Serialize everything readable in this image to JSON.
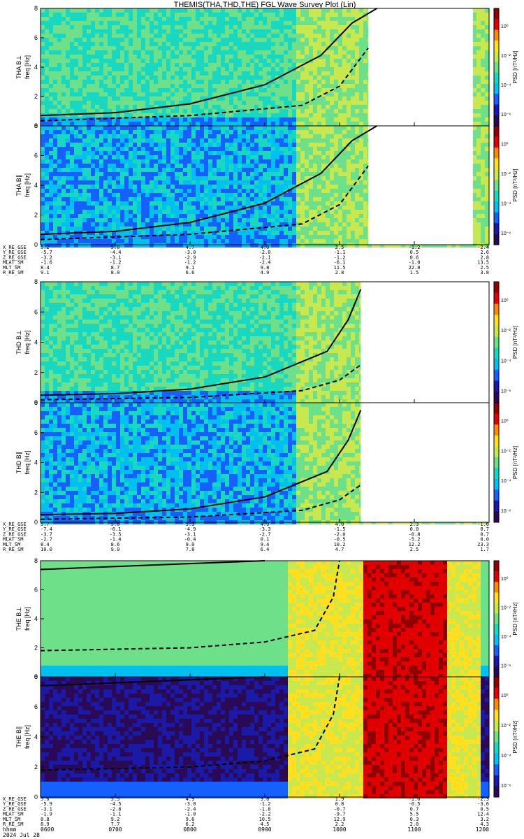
{
  "title": "THEMIS(THA,THD,THE) FGL Wave Survey Plot (Lin)",
  "colors": {
    "cmap": [
      "#2a0a55",
      "#1a1aa6",
      "#1560ff",
      "#00c0f0",
      "#19d8c0",
      "#6ee08a",
      "#c8e850",
      "#ffe020",
      "#ff8a00",
      "#e00000",
      "#900000"
    ],
    "line": "#000000"
  },
  "colorbar": {
    "label": "PSD [nT²/Hz]",
    "ticks": [
      "10⁰",
      "10⁻²",
      "10⁻⁴",
      "10⁻⁶"
    ]
  },
  "time_axis": {
    "unit_label": "hhmm",
    "date": "2024 Jul 28",
    "ticks": [
      "0600",
      "0700",
      "0800",
      "0900",
      "1000",
      "1100",
      "1200"
    ]
  },
  "chart_data": [
    {
      "type": "heatmap",
      "id": "tha_bperp",
      "panel_label": "THA B⊥",
      "ylabel": "freq [Hz]",
      "y_ticks": [
        "0",
        "2",
        "4",
        "6",
        "8"
      ],
      "ylim": [
        0,
        8
      ],
      "xlim": [
        "0600",
        "1200"
      ],
      "data_gaps": [
        [
          "1023",
          "1147"
        ]
      ],
      "curves": {
        "solid_fce": {
          "x": [
            "0600",
            "0700",
            "0800",
            "0900",
            "0945",
            "1010",
            "1030"
          ],
          "y": [
            0.7,
            0.9,
            1.5,
            2.8,
            4.8,
            7.0,
            8.0
          ]
        },
        "dashed_fce_half": {
          "x": [
            "0600",
            "0800",
            "0930",
            "1000",
            "1023"
          ],
          "y": [
            0.35,
            0.7,
            1.4,
            2.7,
            5.3
          ]
        }
      }
    },
    {
      "type": "heatmap",
      "id": "tha_bpar",
      "panel_label": "THA B∥",
      "ylabel": "freq [Hz]",
      "y_ticks": [
        "0",
        "2",
        "4",
        "6",
        "8"
      ],
      "ylim": [
        0,
        8
      ],
      "xlim": [
        "0600",
        "1200"
      ],
      "data_gaps": [
        [
          "1023",
          "1147"
        ]
      ]
    },
    {
      "type": "table",
      "id": "tha_ephem",
      "rows": [
        {
          "label": "X_RE_GSE",
          "values": [
            "5.2",
            "5.0",
            "4.7",
            "4.0",
            "2.5",
            "-1.2",
            "-2.4"
          ]
        },
        {
          "label": "Y_RE_GSE",
          "values": [
            "-5.7",
            "-4.4",
            "-3.0",
            "-2.0",
            "-1.1",
            "0.5",
            "2.6"
          ]
        },
        {
          "label": "Z_RE_GSE",
          "values": [
            "-3.2",
            "-3.1",
            "-2.9",
            "-2.1",
            "-1.2",
            "0.6",
            "2.8"
          ]
        },
        {
          "label": "MLAT_SM",
          "values": [
            "-1.6",
            "-1.2",
            "-1.2",
            "-2.4",
            "-6.1",
            "-1.0",
            "13.5"
          ]
        },
        {
          "label": "MLT_SM",
          "values": [
            "8.4",
            "8.7",
            "9.1",
            "9.8",
            "11.5",
            "22.0",
            "2.5"
          ]
        },
        {
          "label": "R_RE_SM",
          "values": [
            "9.1",
            "8.0",
            "6.6",
            "4.9",
            "2.8",
            "1.5",
            "3.8"
          ]
        }
      ]
    },
    {
      "type": "heatmap",
      "id": "thd_bperp",
      "panel_label": "THD B⊥",
      "ylabel": "freq [Hz]",
      "y_ticks": [
        "0",
        "2",
        "4",
        "6",
        "8"
      ],
      "ylim": [
        0,
        8
      ],
      "xlim": [
        "0600",
        "1200"
      ],
      "data_gaps": [
        [
          "1017",
          "1200"
        ]
      ],
      "curves": {
        "solid_fce": {
          "x": [
            "0600",
            "0700",
            "0800",
            "0900",
            "0950",
            "1007",
            "1017"
          ],
          "y": [
            0.5,
            0.6,
            0.9,
            1.7,
            3.4,
            5.5,
            7.5
          ]
        },
        "dashed_fce_half": {
          "x": [
            "0600",
            "0800",
            "0930",
            "1000",
            "1017"
          ],
          "y": [
            0.2,
            0.35,
            0.8,
            1.5,
            2.5
          ]
        }
      }
    },
    {
      "type": "heatmap",
      "id": "thd_bpar",
      "panel_label": "THD B∥",
      "ylabel": "freq [Hz]",
      "y_ticks": [
        "0",
        "2",
        "4",
        "6",
        "8"
      ],
      "ylim": [
        0,
        8
      ],
      "xlim": [
        "0600",
        "1200"
      ],
      "data_gaps": [
        [
          "1017",
          "1200"
        ]
      ]
    },
    {
      "type": "table",
      "id": "thd_ephem",
      "rows": [
        {
          "label": "X_RE_GSE",
          "values": [
            "5.7",
            "5.6",
            "5.3",
            "4.9",
            "4.0",
            "2.3",
            "-1.6"
          ]
        },
        {
          "label": "Y_RE_GSE",
          "values": [
            "-7.4",
            "-6.1",
            "-4.9",
            "-3.3",
            "-1.5",
            "0.0",
            "0.7"
          ]
        },
        {
          "label": "Z_RE_GSE",
          "values": [
            "-3.7",
            "-3.5",
            "-3.1",
            "-2.7",
            "-2.0",
            "-0.8",
            "0.7"
          ]
        },
        {
          "label": "MLAT_SM",
          "values": [
            "-2.7",
            "-1.4",
            "-0.4",
            "0.1",
            "-0.5",
            "-5.2",
            "0.0"
          ]
        },
        {
          "label": "MLT_SM",
          "values": [
            "8.4",
            "8.6",
            "9.0",
            "9.4",
            "10.2",
            "12.2",
            "23.3"
          ]
        },
        {
          "label": "R_RE_SM",
          "values": [
            "10.0",
            "9.0",
            "7.8",
            "6.4",
            "4.7",
            "2.5",
            "1.7"
          ]
        }
      ]
    },
    {
      "type": "heatmap",
      "id": "the_bperp",
      "panel_label": "THE B⊥",
      "ylabel": "freq [Hz]",
      "y_ticks": [
        "0",
        "2",
        "4",
        "6",
        "8"
      ],
      "ylim": [
        0,
        8
      ],
      "xlim": [
        "0600",
        "1200"
      ],
      "curves": {
        "solid_fce": {
          "x": [
            "0600",
            "0800",
            "0900"
          ],
          "y": [
            7.4,
            7.8,
            8.0
          ]
        },
        "dashed_fce_half": {
          "x": [
            "0600",
            "0800",
            "0900",
            "0940",
            "0955",
            "1000"
          ],
          "y": [
            1.8,
            2.0,
            2.4,
            3.2,
            5.5,
            8.0
          ]
        }
      }
    },
    {
      "type": "heatmap",
      "id": "the_bpar",
      "panel_label": "THE B∥",
      "ylabel": "freq [Hz]",
      "y_ticks": [
        "0",
        "2",
        "4",
        "6",
        "8"
      ],
      "ylim": [
        0,
        8
      ],
      "xlim": [
        "0600",
        "1200"
      ]
    },
    {
      "type": "table",
      "id": "the_ephem",
      "rows": [
        {
          "label": "X_RE_GSE",
          "values": [
            "5.6",
            "5.5",
            "4.9",
            "3.8",
            "1.9",
            "-1.6",
            "-2.3"
          ]
        },
        {
          "label": "Y_RE_GSE",
          "values": [
            "-5.9",
            "-4.5",
            "-3.0",
            "-1.2",
            "0.8",
            "-0.5",
            "-3.6"
          ]
        },
        {
          "label": "Z_RE_GSE",
          "values": [
            "-3.1",
            "-2.8",
            "-2.4",
            "-1.8",
            "-0.7",
            "0.7",
            "0.5"
          ]
        },
        {
          "label": "MLAT_SM",
          "values": [
            "-1.9",
            "-1.1",
            "-1.0",
            "-2.2",
            "-9.7",
            "5.5",
            "12.4"
          ]
        },
        {
          "label": "MLT_SM",
          "values": [
            "8.8",
            "9.2",
            "9.6",
            "10.5",
            "12.9",
            "0.3",
            "3.2"
          ]
        },
        {
          "label": "R_RE_SM",
          "values": [
            "8.9",
            "7.7",
            "6.2",
            "4.5",
            "2.2",
            "2.0",
            "4.3"
          ]
        }
      ]
    }
  ]
}
